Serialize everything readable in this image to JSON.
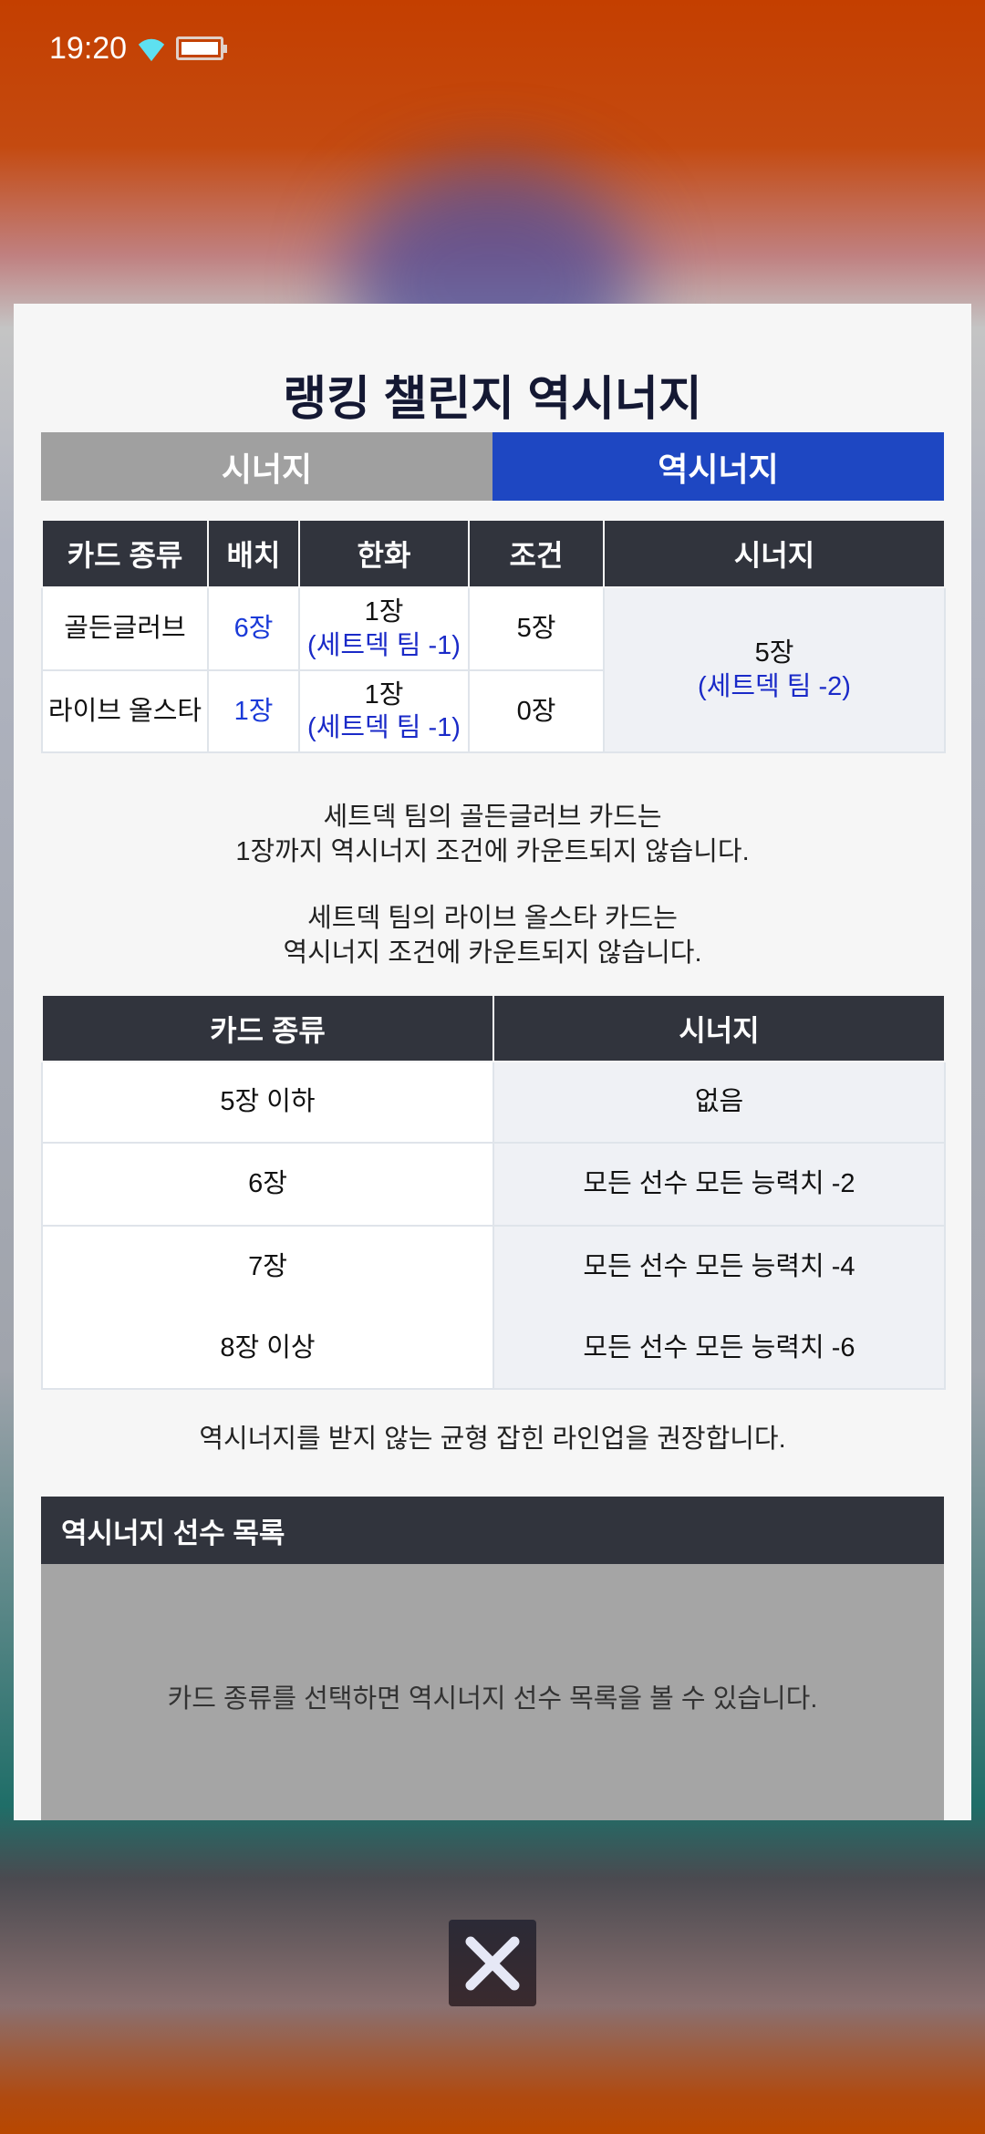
{
  "status_bar": {
    "time": "19:20",
    "wifi_icon": "wifi-icon",
    "battery_icon": "battery-icon"
  },
  "modal": {
    "title": "랭킹 챌린지 역시너지",
    "tabs": [
      {
        "label": "시너지",
        "active": false
      },
      {
        "label": "역시너지",
        "active": true
      }
    ],
    "accent_color": "#1e47c2",
    "table1": {
      "headers": [
        "카드 종류",
        "배치",
        "한화",
        "조건",
        "시너지"
      ],
      "rows": [
        {
          "card_type": "골든글러브",
          "placement": "6장",
          "hanwha": "1장",
          "hanwha_note": "(세트덱 팀 -1)",
          "condition": "5장"
        },
        {
          "card_type": "라이브 올스타",
          "placement": "1장",
          "hanwha": "1장",
          "hanwha_note": "(세트덱 팀 -1)",
          "condition": "0장"
        }
      ],
      "synergy": "5장",
      "synergy_note": "(세트덱 팀 -2)"
    },
    "notes": [
      [
        "세트덱 팀의 골든글러브 카드는",
        "1장까지 역시너지 조건에 카운트되지 않습니다."
      ],
      [
        "세트덱 팀의 라이브 올스타 카드는",
        "역시너지 조건에 카운트되지 않습니다."
      ]
    ],
    "table2": {
      "headers": [
        "카드 종류",
        "시너지"
      ],
      "rows": [
        [
          "5장 이하",
          "없음"
        ],
        [
          "6장",
          "모든 선수 모든 능력치 -2"
        ],
        [
          "7장",
          "모든 선수 모든 능력치 -4"
        ],
        [
          "8장 이상",
          "모든 선수 모든 능력치 -6"
        ]
      ]
    },
    "recommendation": "역시너지를 받지 않는 균형 잡힌 라인업을 권장합니다.",
    "player_list": {
      "title": "역시너지 선수 목록",
      "empty_message": "카드 종류를 선택하면 역시너지 선수 목록을 볼 수 있습니다."
    }
  },
  "close_button": {
    "icon": "close-icon"
  }
}
